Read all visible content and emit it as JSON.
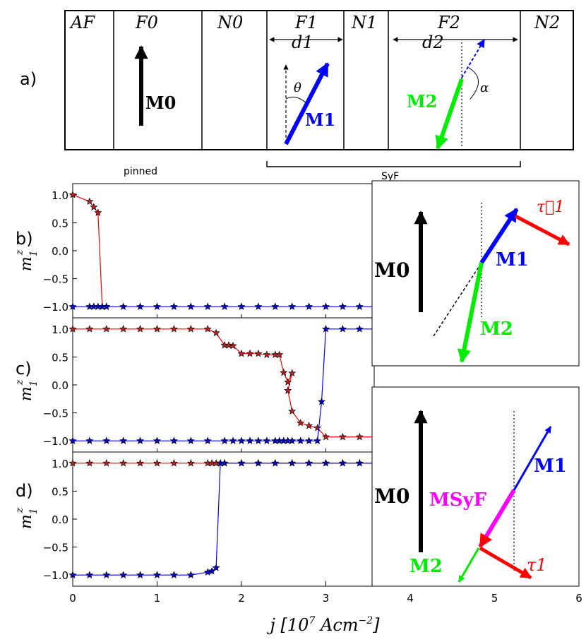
{
  "panel_a": {
    "label": "a)",
    "layers": [
      "AF",
      "F0",
      "N0",
      "F1",
      "N1",
      "F2",
      "N2"
    ],
    "moments": {
      "m0": "M0",
      "m1": "M1",
      "m2": "M2"
    },
    "thicknesses": {
      "d1": "d1",
      "d2": "d2"
    },
    "angles": {
      "theta": "θ",
      "alpha": "α"
    },
    "brackets": {
      "pinned": "pinned",
      "syf": "SyF"
    }
  },
  "insets": {
    "inset1": {
      "m0": "M0",
      "m1": "M1",
      "m2": "M2",
      "tau1": "τ⃗1"
    },
    "inset2": {
      "m0": "M0",
      "m1": "M1",
      "m2": "M2",
      "msyf": "MSyF",
      "tau1": "τ1"
    }
  },
  "chart_data": [
    {
      "panel": "b)",
      "type": "line",
      "ylabel": "m1z",
      "xlim": [
        0,
        6
      ],
      "ylim": [
        -1.2,
        1.2
      ],
      "yticks": [
        "1.0",
        "0.5",
        "0.0",
        "−0.5",
        "−1.0"
      ],
      "series": [
        {
          "name": "red",
          "color": "#ff0000",
          "x": [
            0.0,
            0.2,
            0.25,
            0.3,
            0.35,
            0.4
          ],
          "y": [
            1.0,
            0.88,
            0.78,
            0.68,
            -1.0,
            -1.0
          ]
        },
        {
          "name": "blue",
          "color": "#0000ff",
          "x": [
            0.0,
            0.2,
            0.25,
            0.3,
            0.35,
            0.4,
            0.6,
            0.8,
            1.0,
            1.2,
            1.4,
            1.6,
            1.8,
            2.0,
            2.2,
            2.4,
            2.6,
            2.8,
            3.0,
            3.2,
            3.4,
            3.6
          ],
          "y": [
            -1,
            -1,
            -1,
            -1,
            -1,
            -1,
            -1,
            -1,
            -1,
            -1,
            -1,
            -1,
            -1,
            -1,
            -1,
            -1,
            -1,
            -1,
            -1,
            -1,
            -1,
            -1
          ]
        }
      ]
    },
    {
      "panel": "c)",
      "type": "line",
      "ylabel": "m1z",
      "xlim": [
        0,
        6
      ],
      "ylim": [
        -1.2,
        1.2
      ],
      "yticks": [
        "1.0",
        "0.5",
        "0.0",
        "−0.5",
        "−1.0"
      ],
      "series": [
        {
          "name": "red",
          "color": "#ff0000",
          "x": [
            0.0,
            0.2,
            0.4,
            0.6,
            0.8,
            1.0,
            1.2,
            1.4,
            1.6,
            1.7,
            1.8,
            1.85,
            1.9,
            2.0,
            2.1,
            2.2,
            2.3,
            2.4,
            2.45,
            2.5,
            2.55,
            2.6,
            2.55,
            2.6,
            2.7,
            2.8,
            2.9,
            3.0,
            3.2,
            3.4,
            3.6
          ],
          "y": [
            1.0,
            1.0,
            1.0,
            1.0,
            1.0,
            1.0,
            1.0,
            1.0,
            1.0,
            0.93,
            0.71,
            0.71,
            0.7,
            0.56,
            0.56,
            0.56,
            0.54,
            0.54,
            0.54,
            0.22,
            0.05,
            0.21,
            -0.1,
            -0.47,
            -0.68,
            -0.73,
            -0.77,
            -0.93,
            -0.93,
            -0.93,
            -0.93
          ]
        },
        {
          "name": "blue",
          "color": "#0000ff",
          "x": [
            0.0,
            0.2,
            0.4,
            0.6,
            0.8,
            1.0,
            1.2,
            1.4,
            1.6,
            1.8,
            1.9,
            2.0,
            2.1,
            2.2,
            2.3,
            2.4,
            2.45,
            2.5,
            2.55,
            2.6,
            2.7,
            2.8,
            2.9,
            2.95,
            3.0,
            3.2,
            3.4,
            3.6
          ],
          "y": [
            -1,
            -1,
            -1,
            -1,
            -1,
            -1,
            -1,
            -1,
            -1,
            -1,
            -1,
            -1,
            -1,
            -1,
            -1,
            -1,
            -1,
            -1,
            -1,
            -1,
            -1,
            -1,
            -1,
            -0.3,
            1.0,
            1.0,
            1.0,
            1.0
          ]
        }
      ]
    },
    {
      "panel": "d)",
      "type": "line",
      "ylabel": "m1z",
      "xlabel": "j [10^7 Acm^-2]",
      "xlim": [
        0,
        6
      ],
      "ylim": [
        -1.2,
        1.2
      ],
      "xticks": [
        "0",
        "1",
        "2",
        "3",
        "4",
        "5",
        "6"
      ],
      "yticks": [
        "1.0",
        "0.5",
        "0.0",
        "−0.5",
        "−1.0"
      ],
      "series": [
        {
          "name": "red",
          "color": "#ff0000",
          "x": [
            0.0,
            0.2,
            0.4,
            0.6,
            0.8,
            1.0,
            1.2,
            1.4,
            1.6,
            1.65,
            1.7,
            1.75,
            1.8,
            2.0,
            2.2,
            2.4,
            2.6,
            2.8,
            3.0,
            3.2,
            3.4,
            3.6
          ],
          "y": [
            1,
            1,
            1,
            1,
            1,
            1,
            1,
            1,
            1,
            1,
            1,
            1,
            1,
            1,
            1,
            1,
            1,
            1,
            1,
            1,
            1,
            1
          ]
        },
        {
          "name": "blue",
          "color": "#0000ff",
          "x": [
            0.0,
            0.2,
            0.4,
            0.6,
            0.8,
            1.0,
            1.2,
            1.4,
            1.6,
            1.65,
            1.7,
            1.75,
            1.8,
            2.0,
            2.2,
            2.4,
            2.6,
            2.8,
            3.0,
            3.2,
            3.4,
            3.6
          ],
          "y": [
            -1.0,
            -1.0,
            -1.0,
            -1.0,
            -1.0,
            -1.0,
            -1.0,
            -1.0,
            -0.95,
            -0.93,
            -0.87,
            1.0,
            1.0,
            1.0,
            1.0,
            1.0,
            1.0,
            1.0,
            1.0,
            1.0,
            1.0,
            1.0
          ]
        }
      ]
    }
  ]
}
